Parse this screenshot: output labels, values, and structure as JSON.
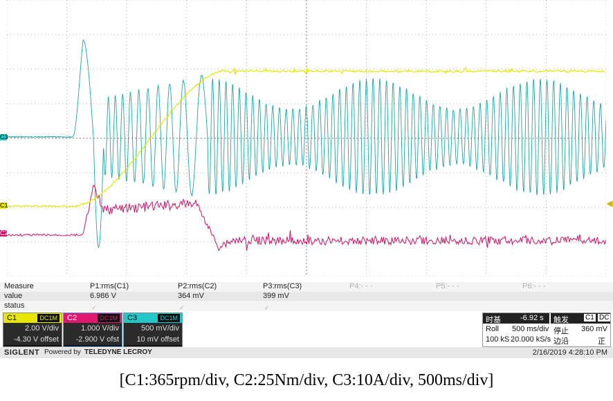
{
  "colors": {
    "c1": "#e6e600",
    "c2": "#cc1166",
    "c3": "#1aa6a6",
    "grid": "#999999"
  },
  "measure": {
    "row_label": "Measure",
    "value_label": "value",
    "status_label": "status",
    "params": [
      {
        "name": "P1:rms(C1)",
        "value": "6.986 V"
      },
      {
        "name": "P2:rms(C2)",
        "value": "364 mV"
      },
      {
        "name": "P3:rms(C3)",
        "value": "399 mV"
      },
      {
        "name": "P4:- - -",
        "value": ""
      },
      {
        "name": "P5:- - -",
        "value": ""
      },
      {
        "name": "P6:- - -",
        "value": ""
      }
    ]
  },
  "channels": [
    {
      "id": "C1",
      "coupling": "DC1M",
      "scale": "2.00 V/div",
      "offset": "-4.30 V offset",
      "color": "#e6e600"
    },
    {
      "id": "C2",
      "coupling": "DC1M",
      "scale": "1.000 V/div",
      "offset": "-2.900 V ofst",
      "color": "#e01870"
    },
    {
      "id": "C3",
      "coupling": "DC1M",
      "scale": "500 mV/div",
      "offset": "10 mV offset",
      "color": "#22c8c8"
    }
  ],
  "timebase": {
    "label": "时基",
    "delay": "-6.92 s",
    "mode": "Roll",
    "scale": "500 ms/div",
    "points": "100 kS",
    "rate": "20.000 kS/s"
  },
  "trigger": {
    "label": "触发",
    "channel": "C1",
    "coupling": "DC",
    "state": "停止",
    "level": "360 mV",
    "edge": "边沿",
    "slope": "正"
  },
  "footer": {
    "brand": "SIGLENT",
    "powered": "Powered by",
    "partner": "TELEDYNE LECROY",
    "datetime": "2/16/2019 4:28:10 PM"
  },
  "caption": "[C1:365rpm/div, C2:25Nm/div, C3:10A/div, 500ms/div]"
}
